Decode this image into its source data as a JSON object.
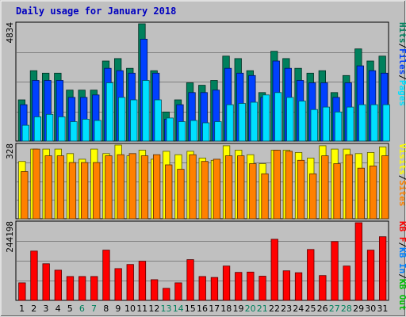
{
  "title": "Daily usage for January 2018",
  "colors": {
    "hits": "#00805c",
    "files": "#0040ff",
    "pages": "#00e0ff",
    "visits": "#ffff00",
    "sites": "#ff8000",
    "kbf": "#ff0000",
    "kbin": "#0080ff",
    "kbout": "#00c000",
    "separator": "#000000",
    "weekend": "#00805c",
    "weekday": "#000000"
  },
  "legend": {
    "panel1": [
      {
        "text": "Hits",
        "color_key": "hits"
      },
      {
        "text": "/",
        "color_key": "separator"
      },
      {
        "text": "Files",
        "color_key": "files"
      },
      {
        "text": "/",
        "color_key": "separator"
      },
      {
        "text": "Pages",
        "color_key": "pages"
      }
    ],
    "panel2": [
      {
        "text": "Visits",
        "color_key": "visits"
      },
      {
        "text": "/",
        "color_key": "separator"
      },
      {
        "text": "Sites",
        "color_key": "sites"
      }
    ],
    "panel3": [
      {
        "text": "KB F",
        "color_key": "kbf"
      },
      {
        "text": "/",
        "color_key": "separator"
      },
      {
        "text": "KB In",
        "color_key": "kbin"
      },
      {
        "text": "/",
        "color_key": "separator"
      },
      {
        "text": "KB Out",
        "color_key": "kbout"
      }
    ]
  },
  "chart_data": {
    "type": "bar",
    "title": "Daily usage for January 2018",
    "categories": [
      "1",
      "2",
      "3",
      "4",
      "5",
      "6",
      "7",
      "8",
      "9",
      "10",
      "11",
      "12",
      "13",
      "14",
      "15",
      "16",
      "17",
      "18",
      "19",
      "20",
      "21",
      "22",
      "23",
      "24",
      "25",
      "26",
      "27",
      "28",
      "29",
      "30",
      "31"
    ],
    "weekend_days": [
      "6",
      "7",
      "13",
      "14",
      "20",
      "21",
      "27",
      "28"
    ],
    "panels": [
      {
        "id": "panel1",
        "max_label": "4834",
        "ylim": [
          0,
          4834
        ],
        "series": [
          {
            "name": "Hits",
            "color_key": "hits",
            "values": [
              1700,
              2900,
              2800,
              2800,
              2100,
              2100,
              2100,
              3300,
              3400,
              3000,
              4834,
              2900,
              1200,
              1700,
              2400,
              2300,
              2500,
              3500,
              3400,
              2900,
              2000,
              3700,
              3400,
              3000,
              2800,
              2900,
              2000,
              2700,
              3800,
              3300,
              3500
            ]
          },
          {
            "name": "Files",
            "color_key": "files",
            "values": [
              1500,
              2500,
              2500,
              2500,
              1800,
              1800,
              1900,
              3000,
              2900,
              2800,
              4200,
              2800,
              900,
              1500,
              2000,
              2000,
              2100,
              3000,
              2800,
              2700,
              1800,
              3300,
              3000,
              2500,
              2400,
              2400,
              1800,
              2400,
              3100,
              2900,
              2800
            ]
          },
          {
            "name": "Pages",
            "color_key": "pages",
            "values": [
              650,
              1000,
              1100,
              1000,
              800,
              900,
              850,
              2400,
              1800,
              1700,
              2500,
              1700,
              950,
              800,
              850,
              750,
              800,
              1500,
              1550,
              1600,
              1900,
              2000,
              1800,
              1650,
              1300,
              1400,
              1200,
              1400,
              1500,
              1500,
              1500
            ]
          }
        ]
      },
      {
        "id": "panel2",
        "max_label": "328",
        "ylim": [
          0,
          328
        ],
        "series": [
          {
            "name": "Visits",
            "color_key": "visits",
            "values": [
              255,
              310,
              310,
              310,
              290,
              265,
              310,
              290,
              328,
              280,
              305,
              265,
              300,
              285,
              300,
              270,
              260,
              325,
              305,
              285,
              245,
              305,
              305,
              295,
              270,
              325,
              310,
              310,
              290,
              295,
              320
            ]
          },
          {
            "name": "Sites",
            "color_key": "sites",
            "values": [
              210,
              310,
              280,
              280,
              250,
              250,
              250,
              280,
              285,
              290,
              280,
              285,
              240,
              220,
              285,
              255,
              265,
              280,
              280,
              245,
              200,
              305,
              300,
              260,
              200,
              280,
              245,
              285,
              225,
              235,
              280
            ]
          }
        ]
      },
      {
        "id": "panel3",
        "max_label": "244198",
        "ylim": [
          0,
          244198
        ],
        "series": [
          {
            "name": "KB F",
            "color_key": "kbf",
            "values": [
              55000,
              155000,
              115000,
              95000,
              75000,
              75000,
              75000,
              158000,
              100000,
              113000,
              123000,
              65000,
              38000,
              55000,
              128000,
              75000,
              72000,
              108000,
              88000,
              89000,
              76000,
              192000,
              93000,
              87000,
              160000,
              78000,
              185000,
              108000,
              244198,
              158000,
              200000
            ]
          }
        ]
      }
    ]
  }
}
